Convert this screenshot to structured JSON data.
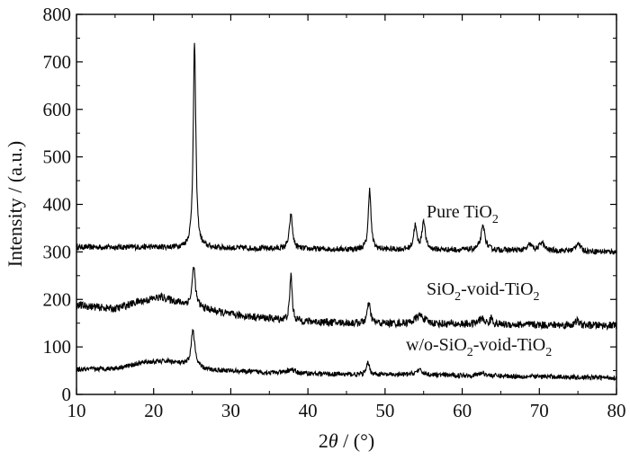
{
  "chart_data": {
    "type": "line",
    "title": "",
    "xlabel_parts": [
      "2",
      "θ",
      " / (°)"
    ],
    "ylabel": "Intensity / (a.u.)",
    "xlim": [
      10,
      80
    ],
    "ylim": [
      0,
      800
    ],
    "x_ticks": [
      10,
      20,
      30,
      40,
      50,
      60,
      70,
      80
    ],
    "y_ticks": [
      0,
      100,
      200,
      300,
      400,
      500,
      600,
      700,
      800
    ],
    "grid": false,
    "legend": "none",
    "line_color": "#000000",
    "series": [
      {
        "label_parts": [
          "Pure TiO",
          "2",
          ""
        ],
        "baseline": [
          [
            10,
            310
          ],
          [
            20,
            310
          ],
          [
            30,
            308
          ],
          [
            40,
            306
          ],
          [
            50,
            305
          ],
          [
            60,
            304
          ],
          [
            70,
            303
          ],
          [
            80,
            300
          ]
        ],
        "peaks": [
          {
            "x": 25.3,
            "height": 432,
            "width": 0.25
          },
          {
            "x": 37.8,
            "height": 72,
            "width": 0.3
          },
          {
            "x": 48.0,
            "height": 130,
            "width": 0.25
          },
          {
            "x": 53.9,
            "height": 50,
            "width": 0.3
          },
          {
            "x": 55.0,
            "height": 62,
            "width": 0.3
          },
          {
            "x": 62.7,
            "height": 50,
            "width": 0.4
          },
          {
            "x": 68.8,
            "height": 12,
            "width": 0.4
          },
          {
            "x": 70.3,
            "height": 18,
            "width": 0.4
          },
          {
            "x": 75.0,
            "height": 18,
            "width": 0.4
          }
        ],
        "noise": 6
      },
      {
        "label_parts": [
          "SiO",
          "2",
          "-void-TiO",
          "2",
          ""
        ],
        "baseline": [
          [
            10,
            188
          ],
          [
            15,
            180
          ],
          [
            18,
            195
          ],
          [
            21,
            205
          ],
          [
            24,
            190
          ],
          [
            30,
            168
          ],
          [
            38,
            155
          ],
          [
            45,
            150
          ],
          [
            55,
            148
          ],
          [
            65,
            147
          ],
          [
            80,
            145
          ]
        ],
        "peaks": [
          {
            "x": 25.2,
            "height": 85,
            "width": 0.3
          },
          {
            "x": 37.8,
            "height": 100,
            "width": 0.22
          },
          {
            "x": 47.9,
            "height": 42,
            "width": 0.3
          },
          {
            "x": 54.5,
            "height": 18,
            "width": 0.9
          },
          {
            "x": 62.5,
            "height": 12,
            "width": 0.6
          },
          {
            "x": 63.8,
            "height": 14,
            "width": 0.2
          },
          {
            "x": 74.9,
            "height": 10,
            "width": 0.3
          }
        ],
        "noise": 8
      },
      {
        "label_parts": [
          "w/o-SiO",
          "2",
          "-void-TiO",
          "2",
          ""
        ],
        "baseline": [
          [
            10,
            52
          ],
          [
            15,
            55
          ],
          [
            19,
            68
          ],
          [
            22,
            70
          ],
          [
            27,
            52
          ],
          [
            35,
            46
          ],
          [
            45,
            42
          ],
          [
            60,
            40
          ],
          [
            80,
            35
          ]
        ],
        "peaks": [
          {
            "x": 25.1,
            "height": 78,
            "width": 0.35
          },
          {
            "x": 37.8,
            "height": 8,
            "width": 0.6
          },
          {
            "x": 47.8,
            "height": 25,
            "width": 0.3
          },
          {
            "x": 54.4,
            "height": 10,
            "width": 0.7
          },
          {
            "x": 62.6,
            "height": 6,
            "width": 0.6
          }
        ],
        "noise": 5
      }
    ]
  }
}
